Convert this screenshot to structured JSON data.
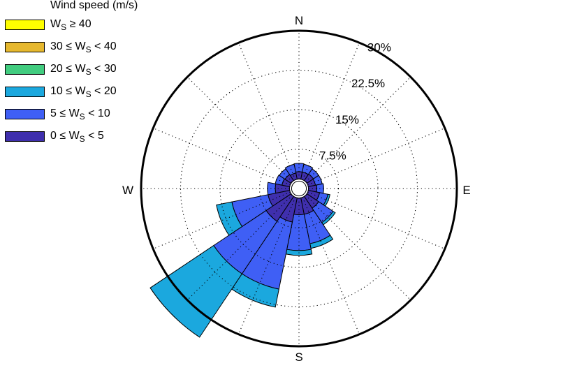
{
  "chart_data": {
    "type": "wind_rose",
    "legend_title": "Wind speed (m/s)",
    "legend": [
      {
        "label_pre": "W",
        "sub": "S",
        "label_post": " ≥ 40",
        "color": "#ffff00"
      },
      {
        "label_pre": "30 ≤ W",
        "sub": "S",
        "label_post": " < 40",
        "color": "#e6b82e"
      },
      {
        "label_pre": "20 ≤ W",
        "sub": "S",
        "label_post": " < 30",
        "color": "#41cc7f"
      },
      {
        "label_pre": "10 ≤ W",
        "sub": "S",
        "label_post": " < 20",
        "color": "#1ba8de"
      },
      {
        "label_pre": "5 ≤ W",
        "sub": "S",
        "label_post": " < 10",
        "color": "#3f5ff5"
      },
      {
        "label_pre": "0 ≤ W",
        "sub": "S",
        "label_post": " < 5",
        "color": "#3f2fad"
      }
    ],
    "cardinals": {
      "N": "N",
      "E": "E",
      "S": "S",
      "W": "W"
    },
    "rings": [
      {
        "value": 7.5,
        "label": "7.5%"
      },
      {
        "value": 15,
        "label": "15%"
      },
      {
        "value": 22.5,
        "label": "22.5%"
      },
      {
        "value": 30,
        "label": "30%"
      }
    ],
    "r_max": 30,
    "center_hole_percent": 1.8,
    "sector_width_deg": 22.5,
    "bin_keys": [
      "0-5",
      "5-10",
      "10-20",
      "20-30",
      "30-40",
      "40+"
    ],
    "bin_colors": [
      "#3f2fad",
      "#3f5ff5",
      "#1ba8de",
      "#41cc7f",
      "#e6b82e",
      "#ffff00"
    ],
    "directions": [
      {
        "dir": 0,
        "cum": [
          3.2,
          4.8
        ]
      },
      {
        "dir": 22.5,
        "cum": [
          3.2,
          4.7
        ]
      },
      {
        "dir": 45,
        "cum": [
          3.3,
          4.5
        ]
      },
      {
        "dir": 67.5,
        "cum": [
          3.2,
          4.5
        ]
      },
      {
        "dir": 90,
        "cum": [
          3.4,
          4.7
        ]
      },
      {
        "dir": 112.5,
        "cum": [
          4.0,
          5.6,
          6.0
        ]
      },
      {
        "dir": 135,
        "cum": [
          4.5,
          7.8,
          8.3
        ]
      },
      {
        "dir": 157.5,
        "cum": [
          5.0,
          10.7,
          11.6
        ]
      },
      {
        "dir": 180,
        "cum": [
          5.0,
          11.8,
          12.7
        ]
      },
      {
        "dir": 202.5,
        "cum": [
          6.5,
          19.5,
          23.0
        ]
      },
      {
        "dir": 225,
        "cum": [
          7.5,
          19.5,
          34.0
        ]
      },
      {
        "dir": 247.5,
        "cum": [
          6.0,
          13.0,
          16.0
        ]
      },
      {
        "dir": 270,
        "cum": [
          4.5,
          6.0
        ]
      },
      {
        "dir": 292.5,
        "cum": [
          3.3,
          4.6
        ]
      },
      {
        "dir": 315,
        "cum": [
          3.2,
          4.5
        ]
      },
      {
        "dir": 337.5,
        "cum": [
          3.0,
          4.7
        ]
      }
    ]
  }
}
